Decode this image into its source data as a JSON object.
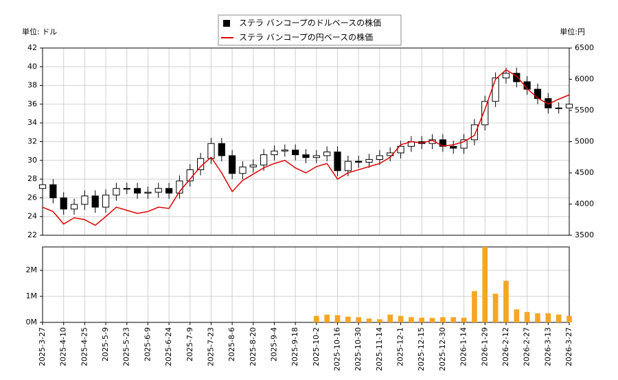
{
  "chart_data": [
    {
      "type": "candlestick",
      "y_unit_label": "単位: ドル",
      "y2_unit_label": "単位:円",
      "ylim": [
        22,
        42
      ],
      "yticks": [
        22,
        24,
        26,
        28,
        30,
        32,
        34,
        36,
        38,
        40,
        42
      ],
      "y2lim": [
        3500,
        6500
      ],
      "y2ticks": [
        3500,
        4000,
        4500,
        5000,
        5500,
        6000,
        6500
      ],
      "grid": true,
      "series": [
        {
          "name": "ステラ バンコープのドルベースの株価",
          "color": "#000000",
          "open": [
            27.0,
            27.4,
            26.0,
            24.8,
            25.3,
            26.2,
            25.0,
            26.3,
            27.0,
            27.0,
            26.5,
            26.6,
            27.0,
            26.5,
            27.8,
            29.0,
            30.2,
            31.8,
            30.5,
            28.6,
            29.3,
            29.5,
            30.6,
            31.0,
            31.1,
            30.6,
            30.3,
            30.5,
            30.9,
            28.9,
            29.9,
            29.8,
            30.1,
            30.5,
            30.8,
            31.5,
            32.0,
            31.8,
            32.2,
            31.5,
            31.3,
            32.2,
            33.8,
            36.3,
            38.8,
            39.3,
            38.4,
            37.6,
            36.6,
            35.6,
            35.6
          ],
          "high": [
            28.0,
            28.0,
            26.6,
            25.9,
            26.8,
            26.8,
            26.9,
            27.6,
            27.6,
            27.6,
            27.2,
            27.6,
            27.6,
            28.4,
            29.6,
            30.8,
            32.4,
            32.4,
            31.1,
            29.9,
            30.1,
            31.2,
            31.6,
            31.7,
            31.7,
            31.2,
            31.1,
            31.5,
            31.5,
            30.5,
            30.5,
            30.7,
            31.1,
            31.4,
            32.1,
            32.6,
            32.6,
            32.8,
            32.8,
            32.1,
            32.8,
            34.4,
            36.9,
            39.4,
            39.9,
            39.9,
            39.0,
            38.2,
            37.2,
            36.2,
            36.6
          ],
          "low": [
            26.4,
            25.4,
            24.2,
            24.2,
            24.7,
            24.4,
            24.4,
            25.7,
            26.4,
            25.9,
            25.9,
            26.0,
            25.9,
            25.9,
            27.2,
            28.4,
            29.6,
            29.9,
            28.0,
            28.0,
            28.7,
            28.9,
            30.0,
            30.4,
            30.0,
            29.7,
            29.7,
            29.9,
            28.3,
            28.3,
            29.2,
            29.2,
            29.5,
            29.9,
            30.2,
            30.9,
            31.2,
            31.2,
            30.9,
            30.7,
            30.7,
            31.6,
            33.2,
            35.7,
            38.2,
            37.8,
            37.0,
            36.0,
            35.0,
            35.0,
            35.0
          ],
          "close": [
            27.4,
            26.0,
            24.8,
            25.3,
            26.2,
            25.0,
            26.3,
            27.0,
            27.0,
            26.5,
            26.6,
            27.0,
            26.5,
            27.8,
            29.0,
            30.2,
            31.8,
            30.5,
            28.6,
            29.3,
            29.5,
            30.6,
            31.0,
            31.1,
            30.6,
            30.3,
            30.5,
            30.9,
            28.9,
            29.9,
            29.8,
            30.1,
            30.5,
            30.8,
            31.5,
            32.0,
            31.8,
            32.2,
            31.5,
            31.3,
            32.2,
            33.8,
            36.3,
            38.8,
            39.3,
            38.4,
            37.6,
            36.6,
            35.6,
            35.6,
            36.0
          ]
        },
        {
          "name": "ステラ バンコープの円ベースの株価",
          "color": "#dd0000",
          "axis": "y2",
          "values": [
            3950,
            3880,
            3680,
            3780,
            3750,
            3660,
            3800,
            3950,
            3900,
            3850,
            3880,
            3950,
            3930,
            4200,
            4400,
            4600,
            4750,
            4500,
            4200,
            4380,
            4480,
            4580,
            4650,
            4700,
            4580,
            4500,
            4600,
            4650,
            4400,
            4500,
            4550,
            4600,
            4650,
            4750,
            4950,
            5000,
            4980,
            5020,
            4930,
            4950,
            5000,
            5100,
            5520,
            6000,
            6150,
            6050,
            5850,
            5700,
            5600,
            5680,
            5750
          ]
        }
      ]
    },
    {
      "type": "bar",
      "color": "#f5a623",
      "categories": [
        "2025-3-27",
        null,
        "2025-4-10",
        null,
        "2025-4-25",
        null,
        "2025-5-9",
        null,
        "2025-5-23",
        null,
        "2025-6-9",
        null,
        "2025-6-24",
        null,
        "2025-7-9",
        null,
        "2025-7-23",
        null,
        "2025-8-6",
        null,
        "2025-8-20",
        null,
        "2025-9-4",
        null,
        "2025-9-18",
        null,
        "2025-10-2",
        null,
        "2025-10-16",
        null,
        "2025-10-30",
        null,
        "2025-11-14",
        null,
        "2025-12-1",
        null,
        "2025-12-15",
        null,
        "2025-12-30",
        null,
        "2026-1-14",
        null,
        "2026-1-29",
        null,
        "2026-2-12",
        null,
        "2026-2-27",
        null,
        "2026-3-13",
        null,
        "2026-3-27"
      ],
      "values": [
        0,
        0,
        0,
        0,
        0,
        0,
        0,
        0,
        0,
        0,
        0,
        0,
        0,
        0,
        0,
        0,
        0,
        0,
        0,
        0,
        0,
        0,
        0,
        0,
        0,
        0,
        250000,
        300000,
        280000,
        220000,
        200000,
        150000,
        120000,
        300000,
        250000,
        200000,
        180000,
        170000,
        200000,
        200000,
        180000,
        1200000,
        2900000,
        1100000,
        1600000,
        500000,
        400000,
        350000,
        350000,
        300000,
        250000
      ],
      "ylim": [
        0,
        2900000
      ],
      "yticks": [
        {
          "value": 0,
          "label": "0M"
        },
        {
          "value": 1000000,
          "label": "1M"
        },
        {
          "value": 2000000,
          "label": "2M"
        }
      ],
      "grid": true
    }
  ]
}
